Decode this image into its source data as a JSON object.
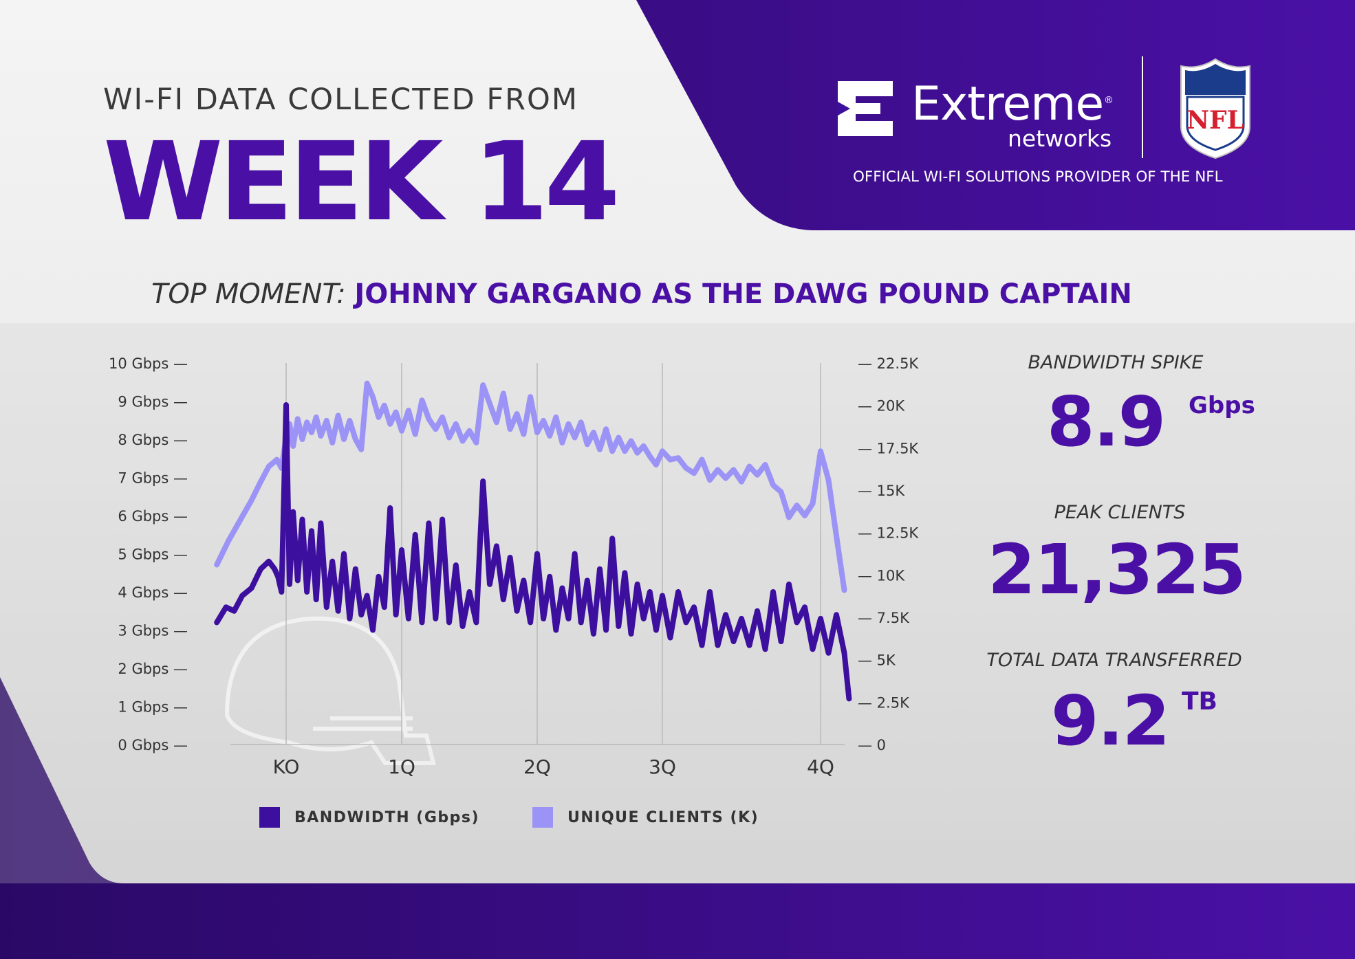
{
  "header": {
    "intro": "WI-FI DATA COLLECTED FROM",
    "week": "WEEK 14"
  },
  "brand": {
    "name": "Extreme",
    "sub": "networks",
    "registered": "®",
    "league_logo_text": "NFL",
    "tagline": "OFFICIAL WI-FI SOLUTIONS PROVIDER OF THE NFL"
  },
  "top_moment": {
    "label": "TOP MOMENT:",
    "text": "JOHNNY GARGANO AS THE DAWG POUND CAPTAIN"
  },
  "stats": {
    "bandwidth_spike": {
      "label": "BANDWIDTH SPIKE",
      "value": "8.9",
      "unit": "Gbps"
    },
    "peak_clients": {
      "label": "PEAK CLIENTS",
      "value": "21,325"
    },
    "total_data": {
      "label": "TOTAL DATA TRANSFERRED",
      "value": "9.2",
      "unit": "TB"
    }
  },
  "colors": {
    "brand_purple": "#4a10a6",
    "dark_purple": "#2e0a6e",
    "bandwidth": "#3d0f9e",
    "clients": "#9b93f5",
    "background_light": "#f2f2f2"
  },
  "chart_data": {
    "type": "line",
    "x_categories": [
      "KO",
      "1Q",
      "2Q",
      "3Q",
      "4Q"
    ],
    "y_left": {
      "ticks": [
        "10 Gbps —",
        "9 Gbps —",
        "8 Gbps —",
        "7 Gbps —",
        "6 Gbps —",
        "5 Gbps —",
        "4 Gbps —",
        "3 Gbps —",
        "2 Gbps —",
        "1 Gbps —",
        "0 Gbps —"
      ],
      "range": [
        0,
        10
      ],
      "unit": "Gbps"
    },
    "y_right": {
      "ticks": [
        "— 22.5K",
        "— 20K",
        "— 17.5K",
        "— 15K",
        "— 12.5K",
        "— 10K",
        "— 7.5K",
        "— 5K",
        "— 2.5K",
        "— 0"
      ],
      "range": [
        0,
        22.5
      ],
      "unit": "K"
    },
    "x_range": [
      -0.6,
      4.2
    ],
    "series": [
      {
        "name": "BANDWIDTH (Gbps)",
        "axis": "left",
        "color": "#3d0f9e",
        "x": [
          -0.6,
          -0.52,
          -0.45,
          -0.38,
          -0.3,
          -0.22,
          -0.15,
          -0.1,
          -0.07,
          -0.04,
          0.0,
          0.03,
          0.06,
          0.1,
          0.14,
          0.18,
          0.22,
          0.26,
          0.3,
          0.35,
          0.4,
          0.45,
          0.5,
          0.55,
          0.6,
          0.65,
          0.7,
          0.75,
          0.8,
          0.85,
          0.9,
          0.95,
          1.0,
          1.05,
          1.1,
          1.15,
          1.2,
          1.25,
          1.3,
          1.35,
          1.4,
          1.45,
          1.5,
          1.55,
          1.6,
          1.65,
          1.7,
          1.75,
          1.8,
          1.85,
          1.9,
          1.95,
          2.0,
          2.05,
          2.1,
          2.15,
          2.2,
          2.25,
          2.3,
          2.35,
          2.4,
          2.45,
          2.5,
          2.55,
          2.6,
          2.65,
          2.7,
          2.75,
          2.8,
          2.85,
          2.9,
          2.95,
          3.0,
          3.05,
          3.1,
          3.15,
          3.2,
          3.25,
          3.3,
          3.35,
          3.4,
          3.45,
          3.5,
          3.55,
          3.6,
          3.65,
          3.7,
          3.75,
          3.8,
          3.85,
          3.9,
          3.95,
          4.0,
          4.05,
          4.1,
          4.15,
          4.18
        ],
        "values": [
          3.2,
          3.6,
          3.5,
          3.9,
          4.1,
          4.6,
          4.8,
          4.6,
          4.4,
          4.0,
          8.9,
          4.2,
          6.1,
          4.3,
          5.9,
          4.0,
          5.6,
          3.8,
          5.8,
          3.6,
          4.8,
          3.5,
          5.0,
          3.3,
          4.6,
          3.4,
          3.9,
          3.0,
          4.4,
          3.6,
          6.2,
          3.4,
          5.1,
          3.3,
          5.5,
          3.2,
          5.8,
          3.3,
          5.9,
          3.2,
          4.7,
          3.1,
          4.0,
          3.2,
          6.9,
          4.2,
          5.2,
          3.8,
          4.9,
          3.5,
          4.3,
          3.2,
          5.0,
          3.3,
          4.4,
          3.0,
          4.1,
          3.3,
          5.0,
          3.2,
          4.3,
          2.9,
          4.6,
          3.0,
          5.4,
          3.1,
          4.5,
          2.9,
          4.2,
          3.3,
          4.0,
          3.0,
          3.9,
          2.8,
          4.0,
          3.2,
          3.6,
          2.6,
          4.0,
          2.6,
          3.4,
          2.7,
          3.3,
          2.6,
          3.5,
          2.5,
          4.0,
          2.7,
          4.2,
          3.2,
          3.6,
          2.5,
          3.3,
          2.4,
          3.4,
          2.4,
          1.2
        ]
      },
      {
        "name": "UNIQUE CLIENTS (K)",
        "axis": "right",
        "color": "#9b93f5",
        "x": [
          -0.6,
          -0.5,
          -0.4,
          -0.3,
          -0.22,
          -0.15,
          -0.08,
          -0.04,
          0.0,
          0.03,
          0.06,
          0.1,
          0.14,
          0.18,
          0.22,
          0.26,
          0.3,
          0.35,
          0.4,
          0.45,
          0.5,
          0.55,
          0.6,
          0.65,
          0.7,
          0.75,
          0.8,
          0.85,
          0.9,
          0.95,
          1.0,
          1.05,
          1.1,
          1.15,
          1.2,
          1.25,
          1.3,
          1.35,
          1.4,
          1.45,
          1.5,
          1.55,
          1.6,
          1.65,
          1.7,
          1.75,
          1.8,
          1.85,
          1.9,
          1.95,
          2.0,
          2.05,
          2.1,
          2.15,
          2.2,
          2.25,
          2.3,
          2.35,
          2.4,
          2.45,
          2.5,
          2.55,
          2.6,
          2.65,
          2.7,
          2.75,
          2.8,
          2.85,
          2.9,
          2.95,
          3.0,
          3.05,
          3.1,
          3.15,
          3.2,
          3.25,
          3.3,
          3.35,
          3.4,
          3.45,
          3.5,
          3.55,
          3.6,
          3.65,
          3.7,
          3.75,
          3.8,
          3.85,
          3.9,
          3.95,
          4.0,
          4.05,
          4.1,
          4.15
        ],
        "values": [
          10.6,
          12.0,
          13.2,
          14.4,
          15.5,
          16.4,
          16.8,
          16.3,
          18.1,
          18.9,
          17.6,
          19.2,
          18.0,
          19.0,
          18.4,
          19.3,
          18.2,
          19.1,
          17.8,
          19.4,
          18.0,
          19.1,
          18.0,
          17.4,
          21.3,
          20.5,
          19.3,
          20.0,
          18.9,
          19.6,
          18.5,
          19.7,
          18.3,
          20.3,
          19.2,
          18.6,
          19.3,
          18.1,
          18.9,
          17.9,
          18.5,
          17.8,
          21.2,
          20.1,
          19.0,
          20.7,
          18.6,
          19.5,
          18.3,
          20.5,
          18.4,
          19.1,
          18.2,
          19.3,
          17.8,
          18.9,
          18.1,
          19.0,
          17.7,
          18.4,
          17.4,
          18.6,
          17.3,
          18.1,
          17.3,
          17.9,
          17.2,
          17.6,
          17.0,
          16.5,
          17.3,
          16.8,
          16.9,
          16.3,
          16.0,
          16.8,
          15.6,
          16.2,
          15.7,
          16.2,
          15.5,
          16.4,
          15.9,
          16.5,
          15.3,
          14.9,
          13.4,
          14.1,
          13.5,
          14.2,
          17.3,
          15.6,
          12.3,
          9.1
        ]
      }
    ],
    "legend": [
      {
        "label": "BANDWIDTH (Gbps)",
        "color": "#3d0f9e"
      },
      {
        "label": "UNIQUE CLIENTS (K)",
        "color": "#9b93f5"
      }
    ],
    "grid": "vertical lines at quarter markers",
    "legend_position": "bottom"
  }
}
